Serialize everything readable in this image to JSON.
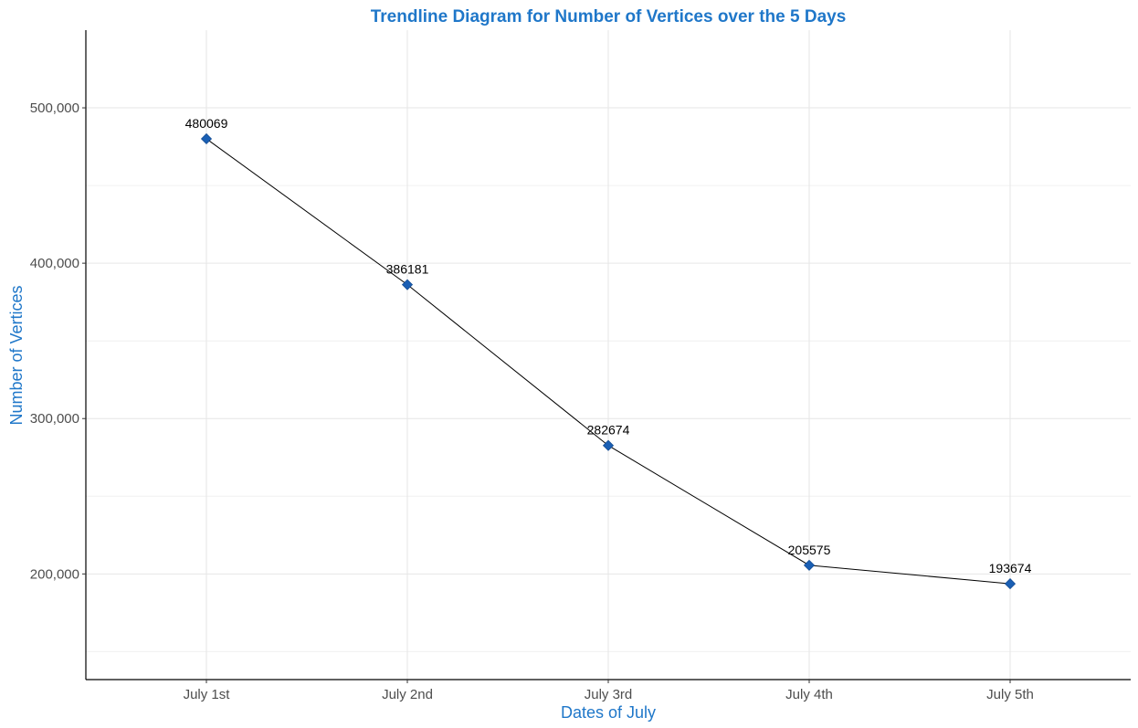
{
  "colors": {
    "accent": "#1f77c9",
    "point": "#1a5fb4",
    "line": "#000000"
  },
  "chart_data": {
    "type": "line",
    "title": "Trendline Diagram for Number of Vertices over the 5 Days",
    "xlabel": "Dates of July",
    "ylabel": "Number of Vertices",
    "categories": [
      "July 1st",
      "July 2nd",
      "July 3rd",
      "July 4th",
      "July 5th"
    ],
    "values": [
      480069,
      386181,
      282674,
      205575,
      193674
    ],
    "data_labels": [
      "480069",
      "386181",
      "282674",
      "205575",
      "193674"
    ],
    "ylim": [
      132000,
      550000
    ],
    "yticks": [
      200000,
      300000,
      400000,
      500000
    ],
    "ytick_labels": [
      "200,000",
      "300,000",
      "400,000",
      "500,000"
    ],
    "yminor": [
      150000,
      250000,
      350000,
      450000
    ],
    "grid": true,
    "marker": "diamond",
    "legend": "none"
  }
}
